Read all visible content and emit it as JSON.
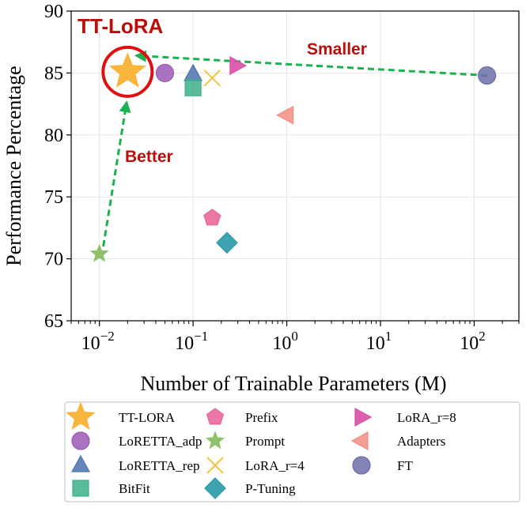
{
  "chart_data": {
    "type": "scatter",
    "xscale": "log",
    "xlim": [
      0.005,
      300
    ],
    "ylim": [
      65,
      90
    ],
    "xlabel": "Number of Trainable Parameters (M)",
    "ylabel": "Performance Percentage",
    "yticks": [
      65,
      70,
      75,
      80,
      85,
      90
    ],
    "xticks": [
      {
        "value": 0.01,
        "base": "10",
        "exp": "−2"
      },
      {
        "value": 0.1,
        "base": "10",
        "exp": "−1"
      },
      {
        "value": 1,
        "base": "10",
        "exp": "0"
      },
      {
        "value": 10,
        "base": "10",
        "exp": "1"
      },
      {
        "value": 100,
        "base": "10",
        "exp": "2"
      }
    ],
    "grid": true,
    "legend_position": "bottom",
    "series": [
      {
        "name": "TT-LORA",
        "x": 0.02,
        "y": 85.1,
        "marker": "star-large",
        "color": "#f9b233"
      },
      {
        "name": "LoRETTA_adp",
        "x": 0.05,
        "y": 85.0,
        "marker": "circle",
        "color": "#9b59b6"
      },
      {
        "name": "LoRETTA_rep",
        "x": 0.1,
        "y": 84.9,
        "marker": "triangle-up",
        "color": "#4c72b0"
      },
      {
        "name": "BitFit",
        "x": 0.1,
        "y": 83.8,
        "marker": "square",
        "color": "#3cb08a"
      },
      {
        "name": "Prefix",
        "x": 0.16,
        "y": 73.3,
        "marker": "pentagon",
        "color": "#e8689a"
      },
      {
        "name": "Prompt",
        "x": 0.01,
        "y": 70.4,
        "marker": "star",
        "color": "#8fc16a"
      },
      {
        "name": "LoRA_r=4",
        "x": 0.16,
        "y": 84.6,
        "marker": "x",
        "color": "#f5c342"
      },
      {
        "name": "P-Tuning",
        "x": 0.23,
        "y": 71.3,
        "marker": "diamond",
        "color": "#2a9aa8"
      },
      {
        "name": "LoRA_r=8",
        "x": 0.29,
        "y": 85.6,
        "marker": "triangle-right",
        "color": "#d94fa6"
      },
      {
        "name": "Adapters",
        "x": 1.0,
        "y": 81.6,
        "marker": "triangle-left",
        "color": "#f28e80"
      },
      {
        "name": "FT",
        "x": 137,
        "y": 84.8,
        "marker": "circle",
        "color": "#6b6fa8"
      }
    ],
    "annotations": {
      "title_label": "TT-LoRA",
      "smaller_label": "Smaller",
      "better_label": "Better",
      "arrow_color": "#1bb050",
      "highlight_color": "#e01010",
      "smaller_arrow": {
        "from": {
          "x": 137,
          "y": 84.8
        },
        "to": {
          "x": 0.025,
          "y": 86.4
        }
      },
      "better_arrow": {
        "from": {
          "x": 0.011,
          "y": 71.0
        },
        "to": {
          "x": 0.0195,
          "y": 82.6
        }
      }
    }
  }
}
